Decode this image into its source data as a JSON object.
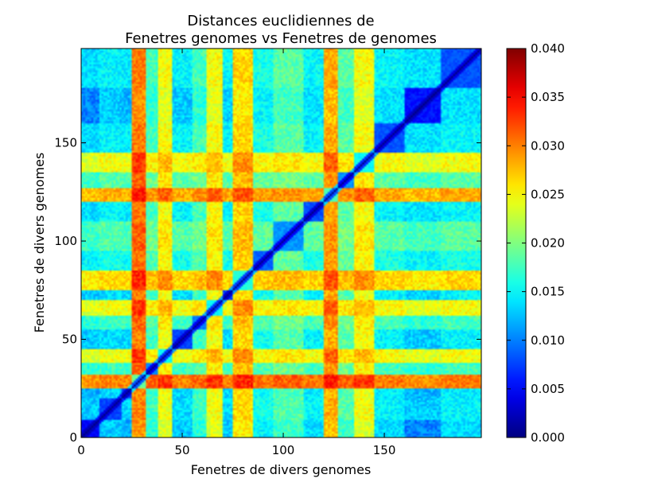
{
  "chart_data": {
    "type": "heatmap",
    "title_line1": "Distances euclidiennes de",
    "title_line2": "Fenetres genomes vs Fenetres de genomes",
    "xlabel": "Fenetres de divers genomes",
    "ylabel": "Fenetres de divers genomes",
    "n": 198,
    "xlim": [
      0,
      198
    ],
    "ylim": [
      0,
      198
    ],
    "xticks": [
      0,
      50,
      100,
      150
    ],
    "yticks": [
      0,
      50,
      100,
      150
    ],
    "colormap": "jet",
    "colorbar": {
      "min": 0.0,
      "max": 0.04,
      "ticks": [
        "0.000",
        "0.005",
        "0.010",
        "0.015",
        "0.020",
        "0.025",
        "0.030",
        "0.035",
        "0.040"
      ]
    },
    "diagonal_value": 0.0,
    "window_blocks": [
      {
        "start": 0,
        "end": 9,
        "level": 0.008
      },
      {
        "start": 9,
        "end": 20,
        "level": 0.012
      },
      {
        "start": 20,
        "end": 25,
        "level": 0.011
      },
      {
        "start": 25,
        "end": 32,
        "level": 0.03
      },
      {
        "start": 32,
        "end": 38,
        "level": 0.016
      },
      {
        "start": 38,
        "end": 45,
        "level": 0.024
      },
      {
        "start": 45,
        "end": 55,
        "level": 0.012
      },
      {
        "start": 55,
        "end": 62,
        "level": 0.016
      },
      {
        "start": 62,
        "end": 70,
        "level": 0.024
      },
      {
        "start": 70,
        "end": 75,
        "level": 0.012
      },
      {
        "start": 75,
        "end": 85,
        "level": 0.026
      },
      {
        "start": 85,
        "end": 95,
        "level": 0.014
      },
      {
        "start": 95,
        "end": 110,
        "level": 0.017
      },
      {
        "start": 110,
        "end": 120,
        "level": 0.013
      },
      {
        "start": 120,
        "end": 127,
        "level": 0.028
      },
      {
        "start": 127,
        "end": 135,
        "level": 0.017
      },
      {
        "start": 135,
        "end": 145,
        "level": 0.024
      },
      {
        "start": 145,
        "end": 160,
        "level": 0.013
      },
      {
        "start": 160,
        "end": 178,
        "level": 0.009
      },
      {
        "start": 178,
        "end": 198,
        "level": 0.013
      }
    ]
  }
}
